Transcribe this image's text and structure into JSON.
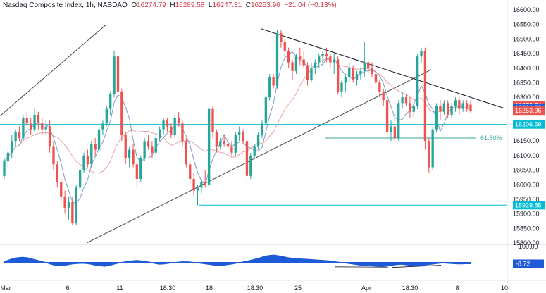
{
  "header": {
    "symbol_title": "Nasdaq Composite Index, 1h, NASDAQ",
    "open_label": "O",
    "open": "16274.79",
    "high_label": "H",
    "high": "16289.58",
    "low_label": "L",
    "low": "16247.31",
    "close_label": "C",
    "close": "16253.96",
    "change": "−21.04 (−0.13%)"
  },
  "colors": {
    "up": "#26a69a",
    "down": "#ef5350",
    "level_line": "#00bcd4",
    "trendline": "#434651",
    "ma_fast": "#7e9cc8",
    "ma_slow": "#e5a3a3",
    "oscillator": "#1e5bd6",
    "fib_line": "#3aa89a"
  },
  "chart_data": {
    "type": "candlestick",
    "price_axis": {
      "ticks": [
        "16600.00",
        "16550.00",
        "16500.00",
        "16450.00",
        "16400.00",
        "16350.00",
        "16300.00",
        "16250.00",
        "16200.00",
        "16150.00",
        "16100.00",
        "16050.00",
        "16000.00",
        "15950.00",
        "15900.00",
        "15850.00",
        "15800.00"
      ],
      "range": [
        15800,
        16600
      ]
    },
    "time_axis": {
      "labels": [
        "Mar",
        "6",
        "11",
        "18:30",
        "18",
        "18:30",
        "25",
        "Apr",
        "18:30",
        "8",
        "10"
      ]
    },
    "badges": [
      {
        "label": "16272.74",
        "value": 16272.74,
        "color": "#ef5350"
      },
      {
        "label": "16264.08",
        "value": 16264.08,
        "color": "#1e5bd6"
      },
      {
        "label": "16253.96",
        "value": 16253.96,
        "color": "#ef5350"
      },
      {
        "label": "16206.69",
        "value": 16206.69,
        "color": "#00bcd4"
      },
      {
        "label": "15929.85",
        "value": 15929.85,
        "color": "#00bcd4"
      }
    ],
    "levels": [
      {
        "value": 16206.69,
        "label": ""
      },
      {
        "value": 15929.85,
        "label": ""
      }
    ],
    "fib_level": {
      "label": "61.80%",
      "value": 16160
    },
    "candles": [
      [
        16030,
        16090,
        16020,
        16080
      ],
      [
        16080,
        16120,
        16060,
        16110
      ],
      [
        16110,
        16170,
        16090,
        16150
      ],
      [
        16150,
        16190,
        16130,
        16180
      ],
      [
        16180,
        16200,
        16150,
        16160
      ],
      [
        16160,
        16240,
        16150,
        16230
      ],
      [
        16230,
        16250,
        16200,
        16210
      ],
      [
        16210,
        16230,
        16170,
        16190
      ],
      [
        16190,
        16260,
        16180,
        16240
      ],
      [
        16240,
        16250,
        16190,
        16210
      ],
      [
        16210,
        16230,
        16170,
        16190
      ],
      [
        16190,
        16220,
        16170,
        16200
      ],
      [
        16200,
        16220,
        16110,
        16130
      ],
      [
        16130,
        16150,
        16050,
        16070
      ],
      [
        16070,
        16080,
        15990,
        16010
      ],
      [
        16010,
        16020,
        15940,
        15960
      ],
      [
        15960,
        15980,
        15900,
        15920
      ],
      [
        15920,
        15960,
        15880,
        15940
      ],
      [
        15940,
        15960,
        15860,
        15870
      ],
      [
        15870,
        16000,
        15860,
        15990
      ],
      [
        15990,
        16060,
        15980,
        16050
      ],
      [
        16050,
        16110,
        16040,
        16100
      ],
      [
        16100,
        16120,
        16060,
        16070
      ],
      [
        16070,
        16150,
        16060,
        16140
      ],
      [
        16140,
        16160,
        16100,
        16120
      ],
      [
        16120,
        16200,
        16110,
        16190
      ],
      [
        16190,
        16220,
        16170,
        16210
      ],
      [
        16210,
        16270,
        16200,
        16260
      ],
      [
        16260,
        16320,
        16240,
        16310
      ],
      [
        16310,
        16460,
        16300,
        16440
      ],
      [
        16440,
        16450,
        16300,
        16320
      ],
      [
        16320,
        16330,
        16150,
        16170
      ],
      [
        16170,
        16180,
        16070,
        16090
      ],
      [
        16090,
        16130,
        16060,
        16120
      ],
      [
        16120,
        16140,
        16060,
        16070
      ],
      [
        16070,
        16080,
        15990,
        16020
      ],
      [
        16020,
        16100,
        16010,
        16090
      ],
      [
        16090,
        16160,
        16080,
        16150
      ],
      [
        16150,
        16170,
        16120,
        16130
      ],
      [
        16130,
        16150,
        16090,
        16110
      ],
      [
        16110,
        16170,
        16100,
        16160
      ],
      [
        16160,
        16200,
        16150,
        16190
      ],
      [
        16190,
        16230,
        16170,
        16220
      ],
      [
        16220,
        16230,
        16180,
        16200
      ],
      [
        16200,
        16210,
        16160,
        16170
      ],
      [
        16170,
        16240,
        16160,
        16230
      ],
      [
        16230,
        16250,
        16200,
        16210
      ],
      [
        16210,
        16220,
        16130,
        16150
      ],
      [
        16150,
        16160,
        16060,
        16070
      ],
      [
        16070,
        16080,
        16000,
        16020
      ],
      [
        16020,
        16040,
        15960,
        15980
      ],
      [
        15980,
        16000,
        15930,
        15990
      ],
      [
        15990,
        16020,
        15970,
        16010
      ],
      [
        16010,
        16050,
        15990,
        16000
      ],
      [
        16000,
        16270,
        15990,
        16260
      ],
      [
        16260,
        16270,
        16160,
        16180
      ],
      [
        16180,
        16190,
        16110,
        16130
      ],
      [
        16130,
        16160,
        16120,
        16150
      ],
      [
        16150,
        16170,
        16130,
        16140
      ],
      [
        16140,
        16160,
        16110,
        16130
      ],
      [
        16130,
        16150,
        16100,
        16110
      ],
      [
        16110,
        16180,
        16100,
        16170
      ],
      [
        16170,
        16200,
        16150,
        16180
      ],
      [
        16180,
        16190,
        16140,
        16150
      ],
      [
        16150,
        16160,
        16000,
        16030
      ],
      [
        16030,
        16110,
        16020,
        16100
      ],
      [
        16100,
        16140,
        16090,
        16130
      ],
      [
        16130,
        16180,
        16120,
        16170
      ],
      [
        16170,
        16220,
        16160,
        16210
      ],
      [
        16210,
        16310,
        16200,
        16300
      ],
      [
        16300,
        16380,
        16290,
        16370
      ],
      [
        16370,
        16380,
        16330,
        16340
      ],
      [
        16340,
        16530,
        16330,
        16520
      ],
      [
        16520,
        16530,
        16470,
        16490
      ],
      [
        16490,
        16500,
        16440,
        16460
      ],
      [
        16460,
        16470,
        16400,
        16420
      ],
      [
        16420,
        16430,
        16360,
        16390
      ],
      [
        16390,
        16450,
        16380,
        16440
      ],
      [
        16440,
        16470,
        16410,
        16430
      ],
      [
        16430,
        16460,
        16400,
        16410
      ],
      [
        16410,
        16420,
        16340,
        16360
      ],
      [
        16360,
        16420,
        16350,
        16400
      ],
      [
        16400,
        16430,
        16380,
        16420
      ],
      [
        16420,
        16450,
        16400,
        16440
      ],
      [
        16440,
        16460,
        16410,
        16450
      ],
      [
        16450,
        16470,
        16420,
        16440
      ],
      [
        16440,
        16450,
        16400,
        16420
      ],
      [
        16420,
        16450,
        16380,
        16430
      ],
      [
        16430,
        16440,
        16310,
        16320
      ],
      [
        16320,
        16360,
        16300,
        16350
      ],
      [
        16350,
        16380,
        16320,
        16370
      ],
      [
        16370,
        16420,
        16350,
        16400
      ],
      [
        16400,
        16410,
        16350,
        16360
      ],
      [
        16360,
        16390,
        16340,
        16380
      ],
      [
        16380,
        16400,
        16360,
        16390
      ],
      [
        16390,
        16490,
        16370,
        16420
      ],
      [
        16420,
        16430,
        16380,
        16400
      ],
      [
        16400,
        16420,
        16370,
        16380
      ],
      [
        16380,
        16400,
        16340,
        16350
      ],
      [
        16350,
        16360,
        16300,
        16320
      ],
      [
        16320,
        16330,
        16270,
        16290
      ],
      [
        16290,
        16300,
        16150,
        16180
      ],
      [
        16180,
        16220,
        16150,
        16200
      ],
      [
        16200,
        16230,
        16150,
        16160
      ],
      [
        16160,
        16290,
        16150,
        16280
      ],
      [
        16280,
        16320,
        16260,
        16300
      ],
      [
        16300,
        16310,
        16270,
        16280
      ],
      [
        16280,
        16300,
        16230,
        16250
      ],
      [
        16250,
        16280,
        16230,
        16270
      ],
      [
        16270,
        16450,
        16260,
        16440
      ],
      [
        16440,
        16470,
        16420,
        16460
      ],
      [
        16460,
        16470,
        16120,
        16150
      ],
      [
        16150,
        16160,
        16040,
        16060
      ],
      [
        16060,
        16200,
        16050,
        16190
      ],
      [
        16190,
        16280,
        16180,
        16270
      ],
      [
        16270,
        16290,
        16220,
        16250
      ],
      [
        16250,
        16290,
        16240,
        16280
      ],
      [
        16280,
        16290,
        16230,
        16240
      ],
      [
        16240,
        16280,
        16230,
        16270
      ],
      [
        16270,
        16300,
        16250,
        16290
      ],
      [
        16290,
        16300,
        16240,
        16260
      ],
      [
        16260,
        16290,
        16250,
        16280
      ],
      [
        16280,
        16290,
        16250,
        16260
      ],
      [
        16274.79,
        16289.58,
        16247.31,
        16253.96
      ]
    ],
    "oscillator": {
      "label": "-8.72",
      "ticks": [
        "100.00"
      ],
      "range": [
        -100,
        100
      ],
      "values": [
        5,
        15,
        25,
        30,
        32,
        30,
        22,
        15,
        8,
        0,
        -10,
        -18,
        -22,
        -20,
        -15,
        -10,
        -8,
        -6,
        -8,
        -12,
        -18,
        -22,
        -25,
        -20,
        -12,
        -5,
        2,
        6,
        10,
        12,
        10,
        6,
        0,
        -8,
        -12,
        -10,
        -6,
        -2,
        2,
        4,
        4,
        2,
        -2,
        -6,
        -10,
        -14,
        -18,
        -20,
        -18,
        -14,
        -10,
        -4,
        2,
        8,
        14,
        22,
        30,
        38,
        44,
        46,
        42,
        36,
        30,
        26,
        24,
        22,
        20,
        18,
        16,
        14,
        12,
        10,
        6,
        2,
        -2,
        -6,
        -10,
        -14,
        -18,
        -20,
        -22,
        -24,
        -26,
        -26,
        -22,
        -18,
        -14,
        -12,
        -16,
        -20,
        -24,
        -22,
        -18,
        -14,
        -10,
        -6,
        -4,
        -6,
        -8,
        -10,
        -10,
        -9,
        -8.72
      ]
    }
  }
}
